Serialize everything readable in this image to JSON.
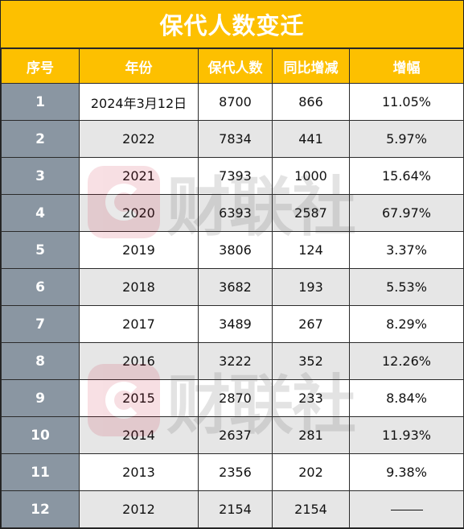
{
  "title": "保代人数变迁",
  "headers": [
    "序号",
    "年份",
    "保代人数",
    "同比增减",
    "增幅"
  ],
  "rows": [
    {
      "idx": "1",
      "year": "2024年3月12日",
      "count": "8700",
      "change": "866",
      "growth": "11.05%"
    },
    {
      "idx": "2",
      "year": "2022",
      "count": "7834",
      "change": "441",
      "growth": "5.97%"
    },
    {
      "idx": "3",
      "year": "2021",
      "count": "7393",
      "change": "1000",
      "growth": "15.64%"
    },
    {
      "idx": "4",
      "year": "2020",
      "count": "6393",
      "change": "2587",
      "growth": "67.97%"
    },
    {
      "idx": "5",
      "year": "2019",
      "count": "3806",
      "change": "124",
      "growth": "3.37%"
    },
    {
      "idx": "6",
      "year": "2018",
      "count": "3682",
      "change": "193",
      "growth": "5.53%"
    },
    {
      "idx": "7",
      "year": "2017",
      "count": "3489",
      "change": "267",
      "growth": "8.29%"
    },
    {
      "idx": "8",
      "year": "2016",
      "count": "3222",
      "change": "352",
      "growth": "12.26%"
    },
    {
      "idx": "9",
      "year": "2015",
      "count": "2870",
      "change": "233",
      "growth": "8.84%"
    },
    {
      "idx": "10",
      "year": "2014",
      "count": "2637",
      "change": "281",
      "growth": "11.93%"
    },
    {
      "idx": "11",
      "year": "2013",
      "count": "2356",
      "change": "202",
      "growth": "9.38%"
    },
    {
      "idx": "12",
      "year": "2012",
      "count": "2154",
      "change": "2154",
      "growth": ""
    }
  ],
  "watermark": {
    "text": "财联社",
    "logo_icon": "cls-logo-icon"
  },
  "colors": {
    "header": "#fdc000",
    "index_col": "#8a96a2",
    "alt_row": "#e6e6e6",
    "watermark_red": "#c8102e"
  }
}
